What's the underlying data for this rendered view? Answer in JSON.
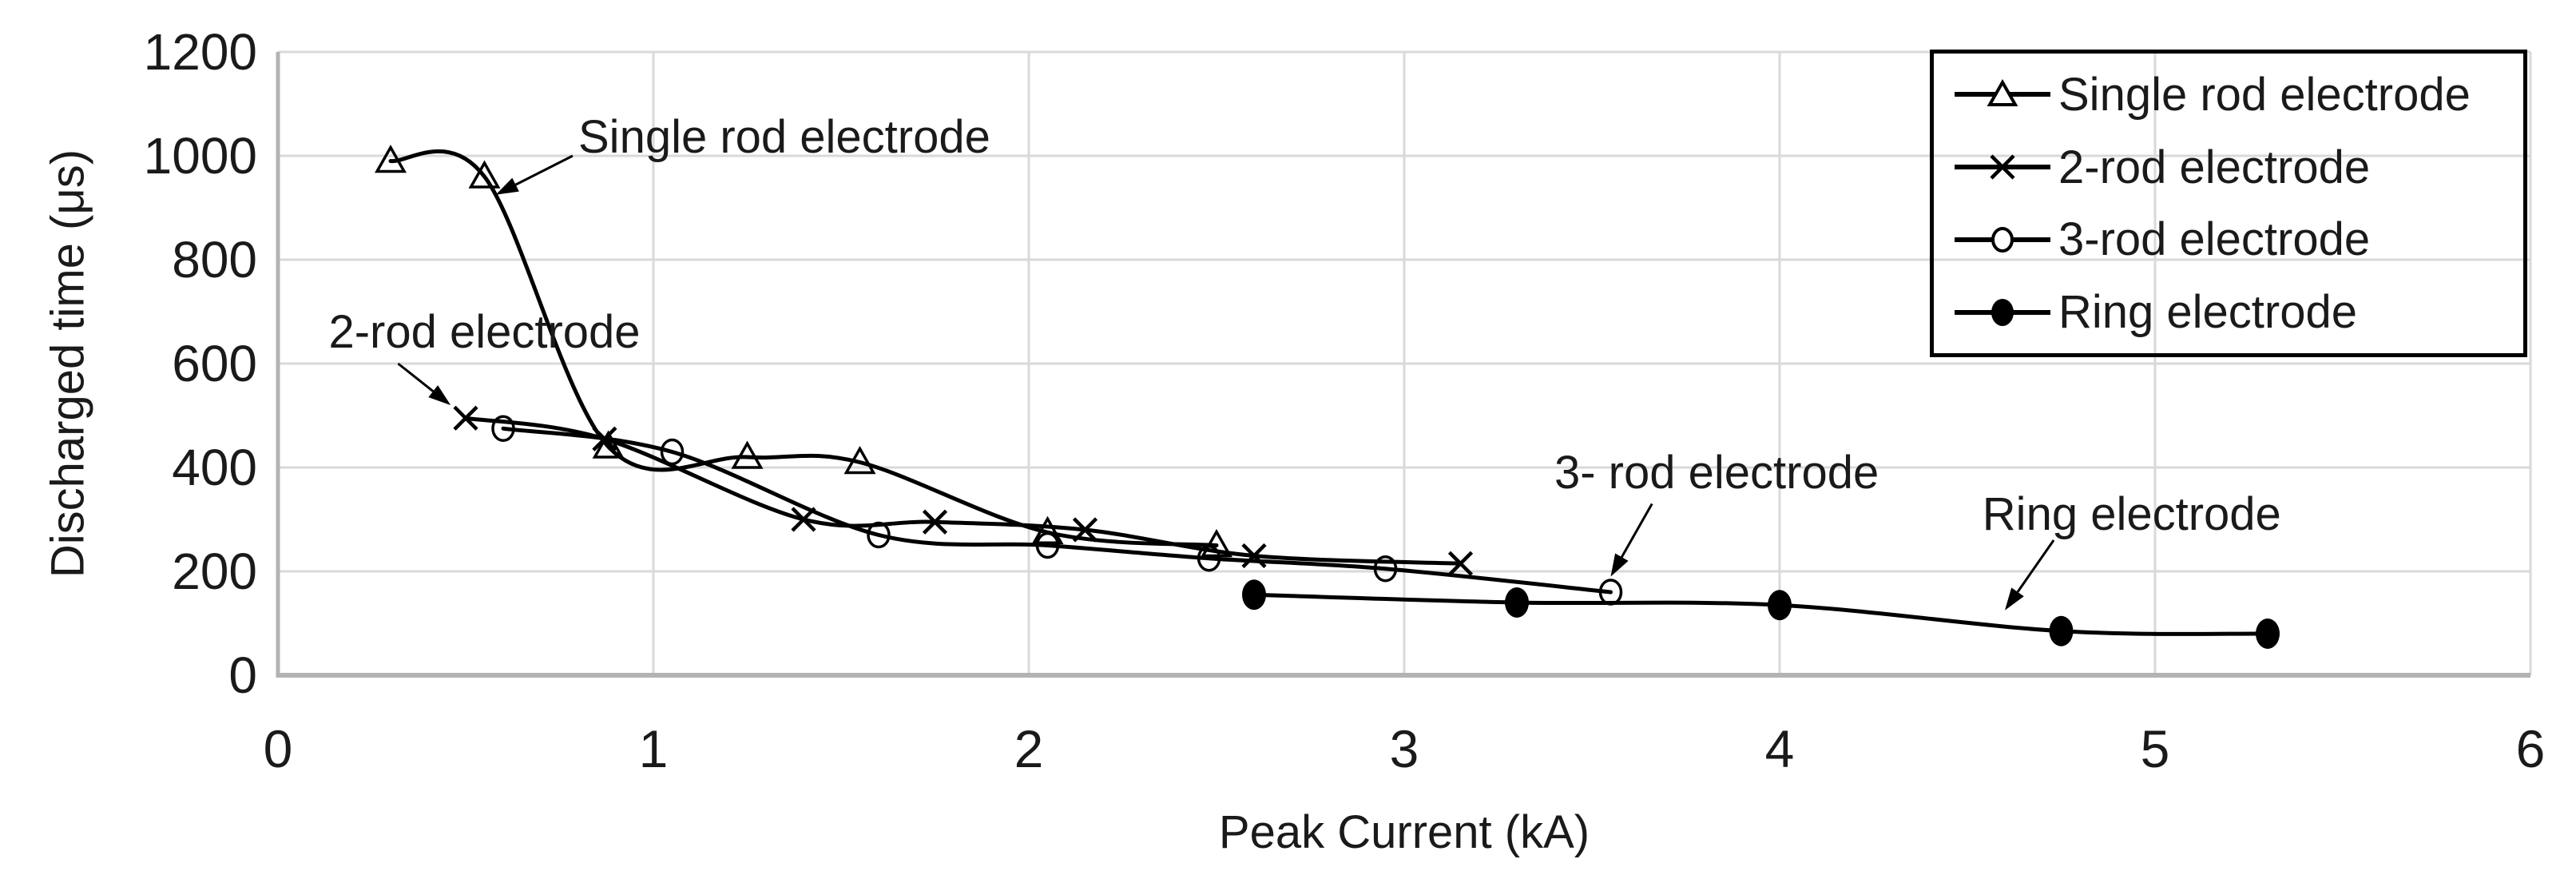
{
  "figure": {
    "background": "#ffffff",
    "series_color": "#000000",
    "gridline_color": "#d9d9d9",
    "axis_line_color": "#b3b3b3",
    "text_color": "#1a1a1a"
  },
  "chart_data": {
    "type": "line",
    "title": "",
    "xlabel": "Peak Current (kA)",
    "ylabel": "Discharged time (μs)",
    "xlim": [
      0,
      6
    ],
    "ylim": [
      0,
      1200
    ],
    "x_ticks": [
      "0",
      "1",
      "2",
      "3",
      "4",
      "5",
      "6"
    ],
    "y_ticks": [
      "0",
      "200",
      "400",
      "600",
      "800",
      "1000",
      "1200"
    ],
    "grid": true,
    "legend_position": "top-right",
    "series": [
      {
        "name": "Single rod electrode",
        "marker": "triangle-open",
        "points": [
          [
            0.3,
            990
          ],
          [
            0.55,
            960
          ],
          [
            0.88,
            440
          ],
          [
            1.25,
            420
          ],
          [
            1.55,
            410
          ],
          [
            2.05,
            275
          ],
          [
            2.5,
            250
          ]
        ]
      },
      {
        "name": "2-rod electrode",
        "marker": "x",
        "points": [
          [
            0.5,
            495
          ],
          [
            0.87,
            455
          ],
          [
            1.4,
            300
          ],
          [
            1.75,
            295
          ],
          [
            2.15,
            280
          ],
          [
            2.6,
            230
          ],
          [
            3.15,
            215
          ]
        ]
      },
      {
        "name": "3-rod electrode",
        "marker": "circle-open",
        "points": [
          [
            0.6,
            475
          ],
          [
            1.05,
            430
          ],
          [
            1.6,
            270
          ],
          [
            2.05,
            250
          ],
          [
            2.48,
            225
          ],
          [
            2.95,
            205
          ],
          [
            3.55,
            160
          ]
        ]
      },
      {
        "name": "Ring electrode",
        "marker": "circle-filled",
        "points": [
          [
            2.6,
            155
          ],
          [
            3.3,
            140
          ],
          [
            4.0,
            135
          ],
          [
            4.75,
            85
          ],
          [
            5.3,
            80
          ]
        ]
      }
    ],
    "annotations": [
      {
        "text": "Single rod electrode",
        "text_x": 0.8,
        "text_y": 1035,
        "arrow_from": [
          0.785,
          1000
        ],
        "arrow_to": [
          0.58,
          925
        ]
      },
      {
        "text": "2-rod electrode",
        "text_x": 0.135,
        "text_y": 660,
        "arrow_from": [
          0.32,
          600
        ],
        "arrow_to": [
          0.46,
          520
        ]
      },
      {
        "text": "3- rod electrode",
        "text_x": 3.4,
        "text_y": 390,
        "arrow_from": [
          3.66,
          330
        ],
        "arrow_to": [
          3.55,
          190
        ]
      },
      {
        "text": "Ring electrode",
        "text_x": 4.54,
        "text_y": 310,
        "arrow_from": [
          4.73,
          260
        ],
        "arrow_to": [
          4.6,
          125
        ]
      }
    ]
  },
  "legend": {
    "items": [
      {
        "label": "Single rod electrode"
      },
      {
        "label": "2-rod electrode"
      },
      {
        "label": "3-rod electrode"
      },
      {
        "label": "Ring electrode"
      }
    ]
  }
}
